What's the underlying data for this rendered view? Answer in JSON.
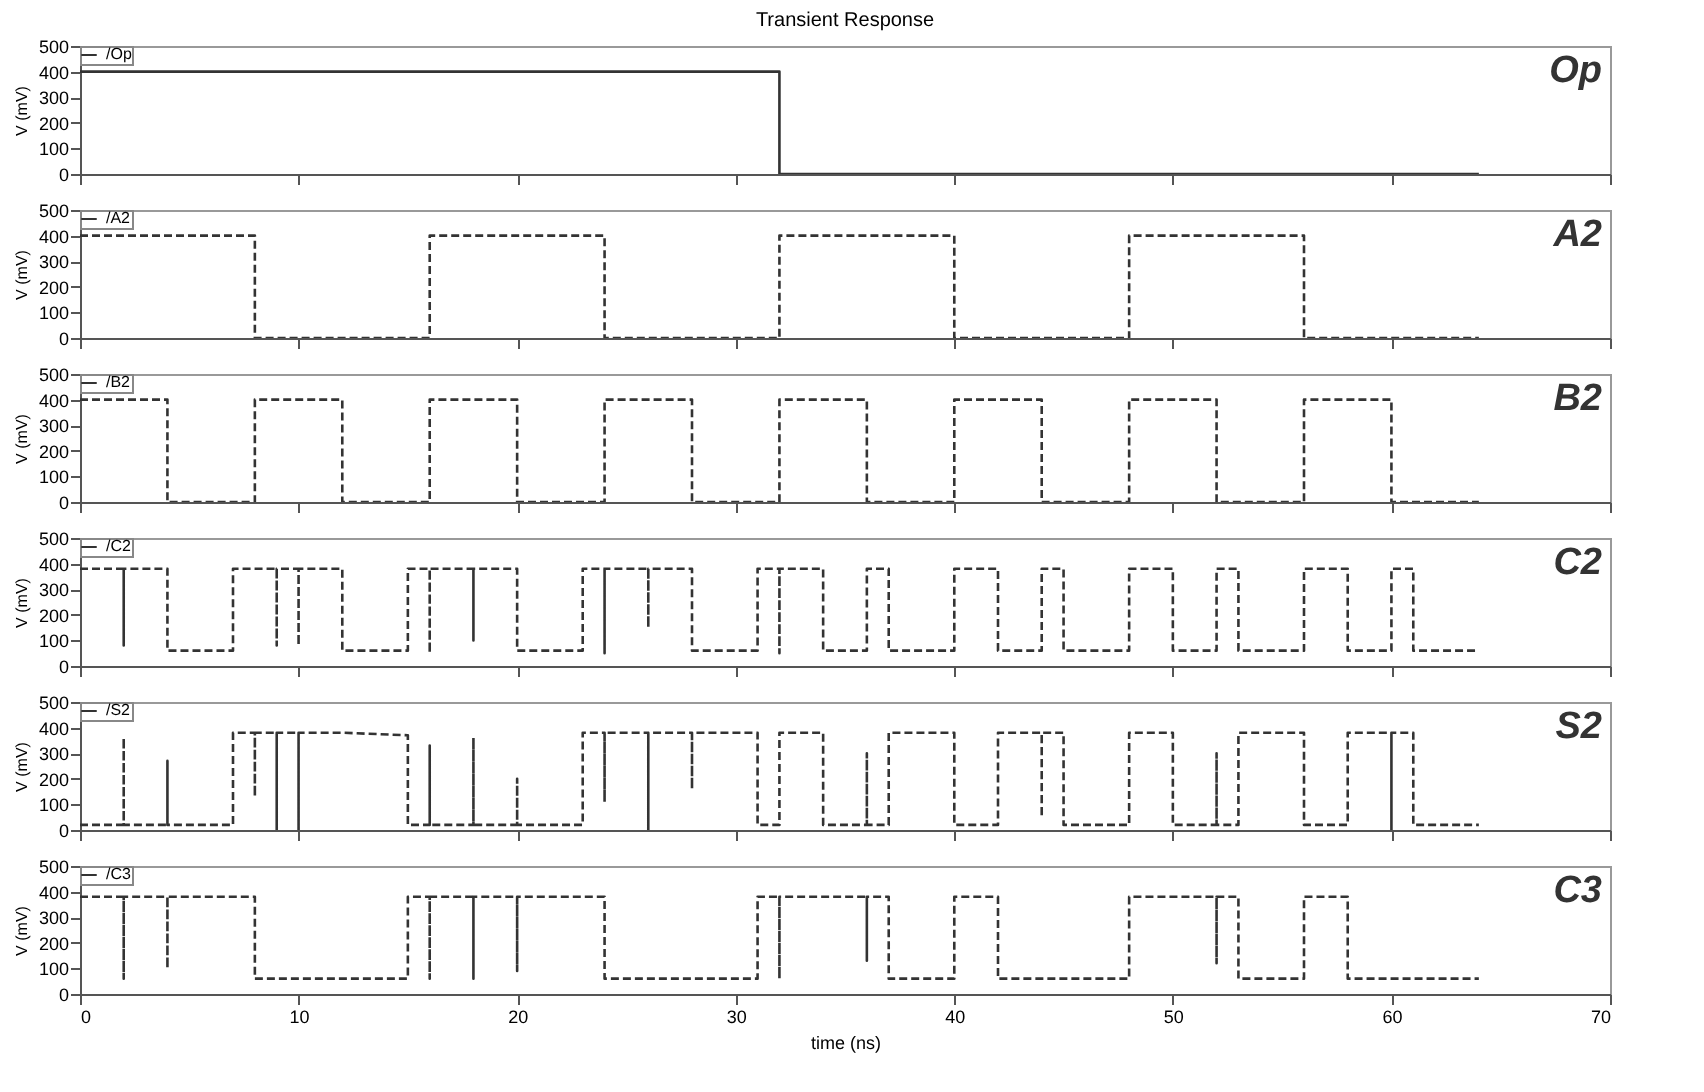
{
  "chart_data": [
    {
      "type": "line",
      "title": "Transient Response",
      "ylabel": "V (mV)",
      "xlim": [
        0,
        70
      ],
      "xticks": [
        0,
        10,
        20,
        30,
        40,
        50,
        60,
        70
      ],
      "ylim": [
        0,
        500
      ],
      "yticks": [
        0,
        100,
        200,
        300,
        400,
        500
      ],
      "tick_labels": "y",
      "legend": "top left",
      "line_style": "solid",
      "annotations": [
        "Op"
      ],
      "series": [
        {
          "name": "/Op",
          "color": "#333333",
          "x": [
            0,
            32,
            32,
            64
          ],
          "values": [
            400,
            400,
            0,
            0
          ]
        }
      ]
    },
    {
      "type": "line",
      "ylabel": "V (mV)",
      "xlim": [
        0,
        70
      ],
      "xticks": [
        0,
        10,
        20,
        30,
        40,
        50,
        60,
        70
      ],
      "ylim": [
        0,
        500
      ],
      "yticks": [
        0,
        100,
        200,
        300,
        400,
        500
      ],
      "tick_labels": "y",
      "legend": "top left",
      "line_style": "dashed",
      "annotations": [
        "A2"
      ],
      "series": [
        {
          "name": "/A2",
          "color": "#333333",
          "x": [
            0,
            8,
            8,
            16,
            16,
            24,
            24,
            32,
            32,
            40,
            40,
            48,
            48,
            56,
            56,
            64
          ],
          "values": [
            400,
            400,
            0,
            0,
            400,
            400,
            0,
            0,
            400,
            400,
            0,
            0,
            400,
            400,
            0,
            0
          ]
        }
      ]
    },
    {
      "type": "line",
      "ylabel": "V (mV)",
      "xlim": [
        0,
        70
      ],
      "xticks": [
        0,
        10,
        20,
        30,
        40,
        50,
        60,
        70
      ],
      "ylim": [
        0,
        500
      ],
      "yticks": [
        0,
        100,
        200,
        300,
        400,
        500
      ],
      "tick_labels": "y",
      "legend": "top left",
      "line_style": "dashed",
      "annotations": [
        "B2"
      ],
      "series": [
        {
          "name": "/B2",
          "color": "#333333",
          "x": [
            0,
            4,
            4,
            8,
            8,
            12,
            12,
            16,
            16,
            20,
            20,
            24,
            24,
            28,
            28,
            32,
            32,
            36,
            36,
            40,
            40,
            44,
            44,
            48,
            48,
            52,
            52,
            56,
            56,
            60,
            60,
            64
          ],
          "values": [
            400,
            400,
            0,
            0,
            400,
            400,
            0,
            0,
            400,
            400,
            0,
            0,
            400,
            400,
            0,
            0,
            400,
            400,
            0,
            0,
            400,
            400,
            0,
            0,
            400,
            400,
            0,
            0,
            400,
            400,
            0,
            0
          ]
        }
      ]
    },
    {
      "type": "line",
      "ylabel": "V (mV)",
      "xlim": [
        0,
        70
      ],
      "xticks": [
        0,
        10,
        20,
        30,
        40,
        50,
        60,
        70
      ],
      "ylim": [
        0,
        500
      ],
      "yticks": [
        0,
        100,
        200,
        300,
        400,
        500
      ],
      "tick_labels": "y",
      "legend": "top left",
      "line_style": "dashed",
      "annotations": [
        "C2"
      ],
      "series": [
        {
          "name": "/C2",
          "color": "#333333",
          "x": [
            0,
            2,
            2,
            2,
            4,
            4,
            7,
            7,
            9,
            9,
            9,
            10,
            10,
            10,
            12,
            12,
            15,
            15,
            16,
            16,
            16,
            18,
            18,
            18,
            20,
            20,
            23,
            23,
            24,
            24,
            24,
            26,
            26,
            26,
            28,
            28,
            31,
            31,
            32,
            32,
            32,
            34,
            34,
            36,
            36,
            37,
            37,
            40,
            40,
            42,
            42,
            44,
            44,
            45,
            45,
            48,
            48,
            50,
            50,
            52,
            52,
            53,
            53,
            56,
            56,
            58,
            58,
            60,
            60,
            61,
            61,
            64
          ],
          "values": [
            380,
            380,
            80,
            380,
            380,
            60,
            60,
            380,
            380,
            80,
            380,
            380,
            80,
            380,
            380,
            60,
            60,
            380,
            380,
            50,
            380,
            380,
            100,
            380,
            380,
            60,
            60,
            380,
            380,
            50,
            380,
            380,
            150,
            380,
            380,
            60,
            60,
            380,
            380,
            50,
            380,
            380,
            60,
            60,
            380,
            380,
            60,
            60,
            380,
            380,
            60,
            60,
            380,
            380,
            60,
            60,
            380,
            380,
            60,
            60,
            380,
            380,
            60,
            60,
            380,
            380,
            60,
            60,
            380,
            380,
            60,
            60
          ]
        }
      ]
    },
    {
      "type": "line",
      "ylabel": "V (mV)",
      "xlim": [
        0,
        70
      ],
      "xticks": [
        0,
        10,
        20,
        30,
        40,
        50,
        60,
        70
      ],
      "ylim": [
        0,
        500
      ],
      "yticks": [
        0,
        100,
        200,
        300,
        400,
        500
      ],
      "tick_labels": "y",
      "legend": "top left",
      "line_style": "dashed",
      "annotations": [
        "S2"
      ],
      "series": [
        {
          "name": "/S2",
          "color": "#333333",
          "x": [
            0,
            2,
            2,
            2,
            4,
            4,
            4,
            7,
            7,
            8,
            8,
            8,
            9,
            9,
            9,
            10,
            10,
            10,
            12,
            15,
            15,
            16,
            16,
            16,
            18,
            18,
            18,
            20,
            20,
            20,
            23,
            23,
            24,
            24,
            24,
            26,
            26,
            26,
            28,
            28,
            28,
            31,
            31,
            32,
            32,
            34,
            34,
            36,
            36,
            36,
            37,
            37,
            40,
            40,
            42,
            42,
            44,
            44,
            44,
            45,
            45,
            48,
            48,
            50,
            50,
            52,
            52,
            52,
            53,
            53,
            56,
            56,
            58,
            58,
            60,
            60,
            60,
            61,
            61,
            64
          ],
          "values": [
            20,
            20,
            360,
            20,
            20,
            270,
            20,
            20,
            380,
            380,
            130,
            380,
            380,
            0,
            380,
            380,
            0,
            380,
            380,
            370,
            20,
            20,
            330,
            20,
            20,
            360,
            20,
            20,
            200,
            20,
            20,
            380,
            380,
            110,
            380,
            380,
            0,
            380,
            380,
            160,
            380,
            380,
            20,
            20,
            380,
            380,
            20,
            20,
            300,
            20,
            20,
            380,
            380,
            20,
            20,
            380,
            380,
            50,
            380,
            380,
            20,
            20,
            380,
            380,
            20,
            20,
            300,
            20,
            20,
            380,
            380,
            20,
            20,
            380,
            380,
            0,
            380,
            380,
            20,
            20
          ]
        }
      ]
    },
    {
      "type": "line",
      "xlabel": "time (ns)",
      "ylabel": "V (mV)",
      "xlim": [
        0,
        70
      ],
      "xticks": [
        0,
        10,
        20,
        30,
        40,
        50,
        60,
        70
      ],
      "ylim": [
        0,
        500
      ],
      "yticks": [
        0,
        100,
        200,
        300,
        400,
        500
      ],
      "legend": "top left",
      "line_style": "dashed",
      "annotations": [
        "C3"
      ],
      "series": [
        {
          "name": "/C3",
          "color": "#333333",
          "x": [
            0,
            2,
            2,
            2,
            4,
            4,
            4,
            8,
            8,
            15,
            15,
            16,
            16,
            16,
            18,
            18,
            18,
            20,
            20,
            20,
            24,
            24,
            31,
            31,
            32,
            32,
            32,
            36,
            36,
            36,
            37,
            37,
            40,
            40,
            42,
            42,
            48,
            48,
            52,
            52,
            52,
            53,
            53,
            56,
            56,
            58,
            58,
            64
          ],
          "values": [
            380,
            380,
            60,
            380,
            380,
            100,
            380,
            380,
            60,
            60,
            380,
            380,
            60,
            380,
            380,
            60,
            380,
            380,
            90,
            380,
            380,
            60,
            60,
            380,
            380,
            60,
            380,
            380,
            130,
            380,
            380,
            60,
            60,
            380,
            380,
            60,
            60,
            380,
            380,
            120,
            380,
            380,
            60,
            60,
            380,
            380,
            60,
            60
          ]
        }
      ]
    }
  ]
}
